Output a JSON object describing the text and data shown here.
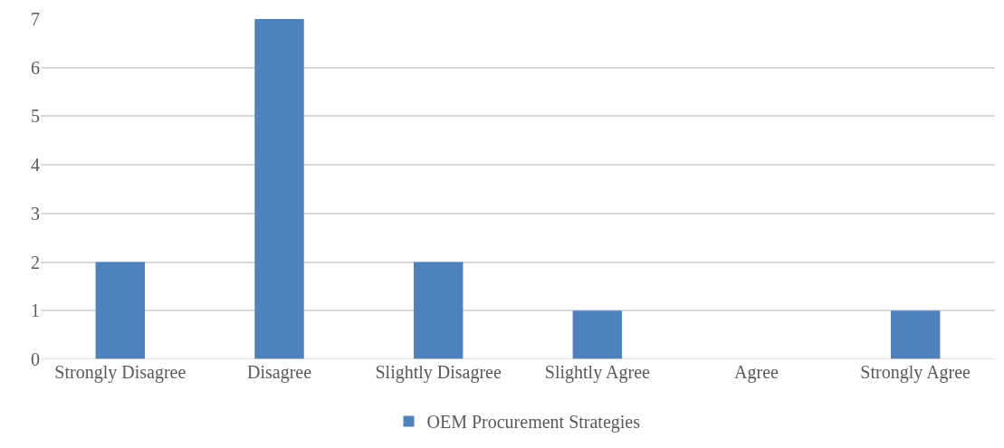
{
  "chart_data": {
    "type": "bar",
    "categories": [
      "Strongly Disagree",
      "Disagree",
      "Slightly Disagree",
      "Slightly Agree",
      "Agree",
      "Strongly Agree"
    ],
    "series": [
      {
        "name": "OEM Procurement Strategies",
        "color": "#4f81bd",
        "values": [
          2,
          7,
          2,
          1,
          0,
          1
        ]
      }
    ],
    "ylim": [
      0,
      7
    ],
    "yticks": [
      0,
      1,
      2,
      3,
      4,
      5,
      6,
      7
    ],
    "grid": "y",
    "legend": "bottom"
  }
}
